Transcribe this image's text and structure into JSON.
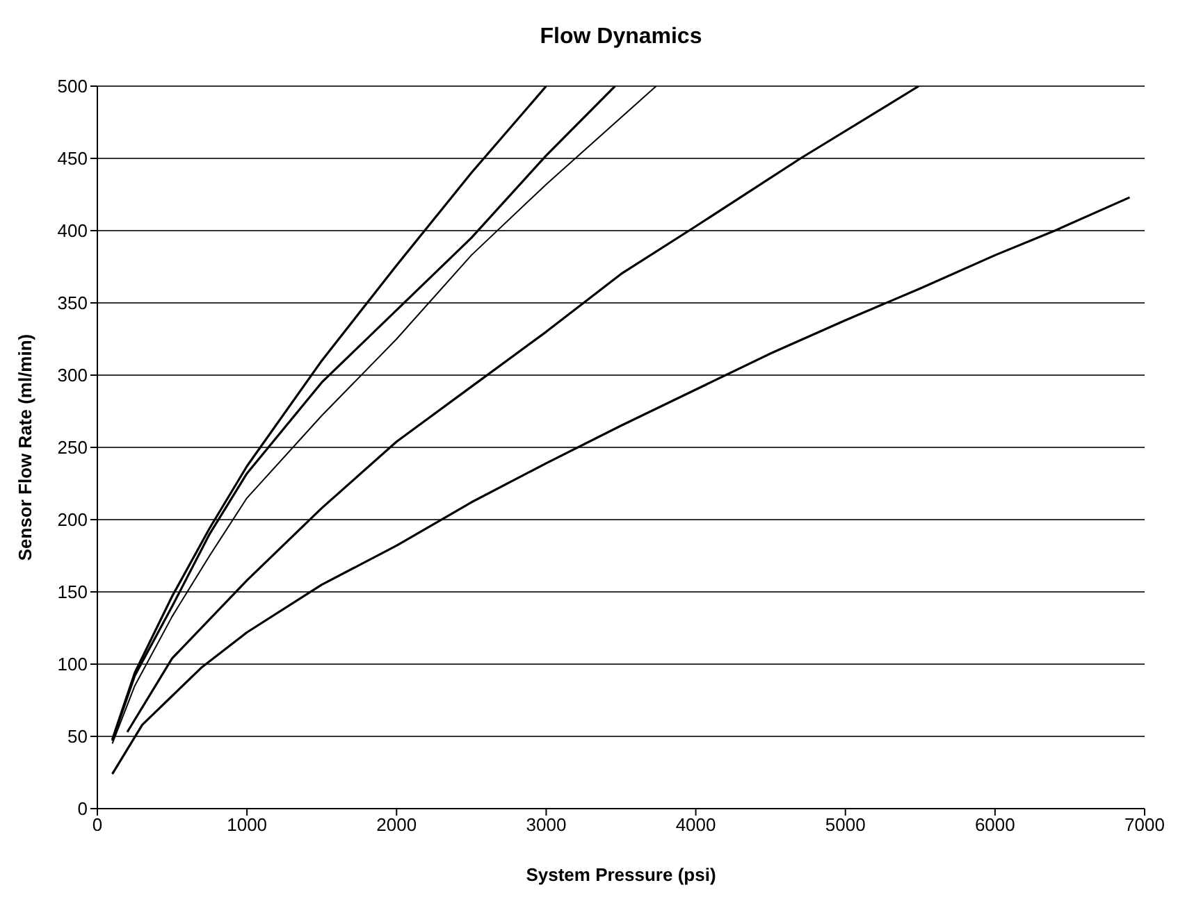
{
  "chart_data": {
    "type": "line",
    "title": "Flow Dynamics",
    "xlabel": "System Pressure (psi)",
    "ylabel": "Sensor Flow Rate (ml/min)",
    "xlim": [
      0,
      7000
    ],
    "xticks": [
      0,
      1000,
      2000,
      3000,
      4000,
      5000,
      6000,
      7000
    ],
    "ylim": [
      0,
      500
    ],
    "yticks": [
      0,
      50,
      100,
      150,
      200,
      250,
      300,
      350,
      400,
      450,
      500
    ],
    "grid": "y",
    "marker": "none",
    "line_style": "solid",
    "series": [
      {
        "color": "#000000",
        "x": [
          100,
          250,
          500,
          750,
          1000,
          1500,
          2000,
          2500,
          3000
        ],
        "values": [
          48,
          94,
          147,
          194,
          237,
          310,
          376,
          440,
          500
        ]
      },
      {
        "color": "#000000",
        "x": [
          100,
          250,
          500,
          750,
          1000,
          1500,
          2000,
          2500,
          3000,
          3460
        ],
        "values": [
          47,
          92,
          140,
          190,
          232,
          295,
          345,
          395,
          452,
          500
        ]
      },
      {
        "color": "#000000",
        "x": [
          100,
          250,
          500,
          750,
          1000,
          1500,
          2000,
          2500,
          3000,
          3735
        ],
        "values": [
          45,
          85,
          133,
          175,
          215,
          272,
          325,
          383,
          432,
          500
        ]
      },
      {
        "color": "#000000",
        "x": [
          200,
          500,
          1000,
          1500,
          2000,
          2500,
          3000,
          3500,
          4000,
          4700,
          5490
        ],
        "values": [
          53,
          104,
          158,
          208,
          254,
          292,
          330,
          370,
          403,
          450,
          500
        ]
      },
      {
        "color": "#000000",
        "x": [
          100,
          300,
          500,
          700,
          1000,
          1500,
          2000,
          2500,
          3000,
          3500,
          4000,
          4500,
          5000,
          5500,
          6000,
          6400,
          6900
        ],
        "values": [
          24,
          58,
          78,
          98,
          122,
          155,
          182,
          212,
          239,
          265,
          290,
          315,
          338,
          360,
          383,
          400,
          423
        ]
      }
    ]
  }
}
